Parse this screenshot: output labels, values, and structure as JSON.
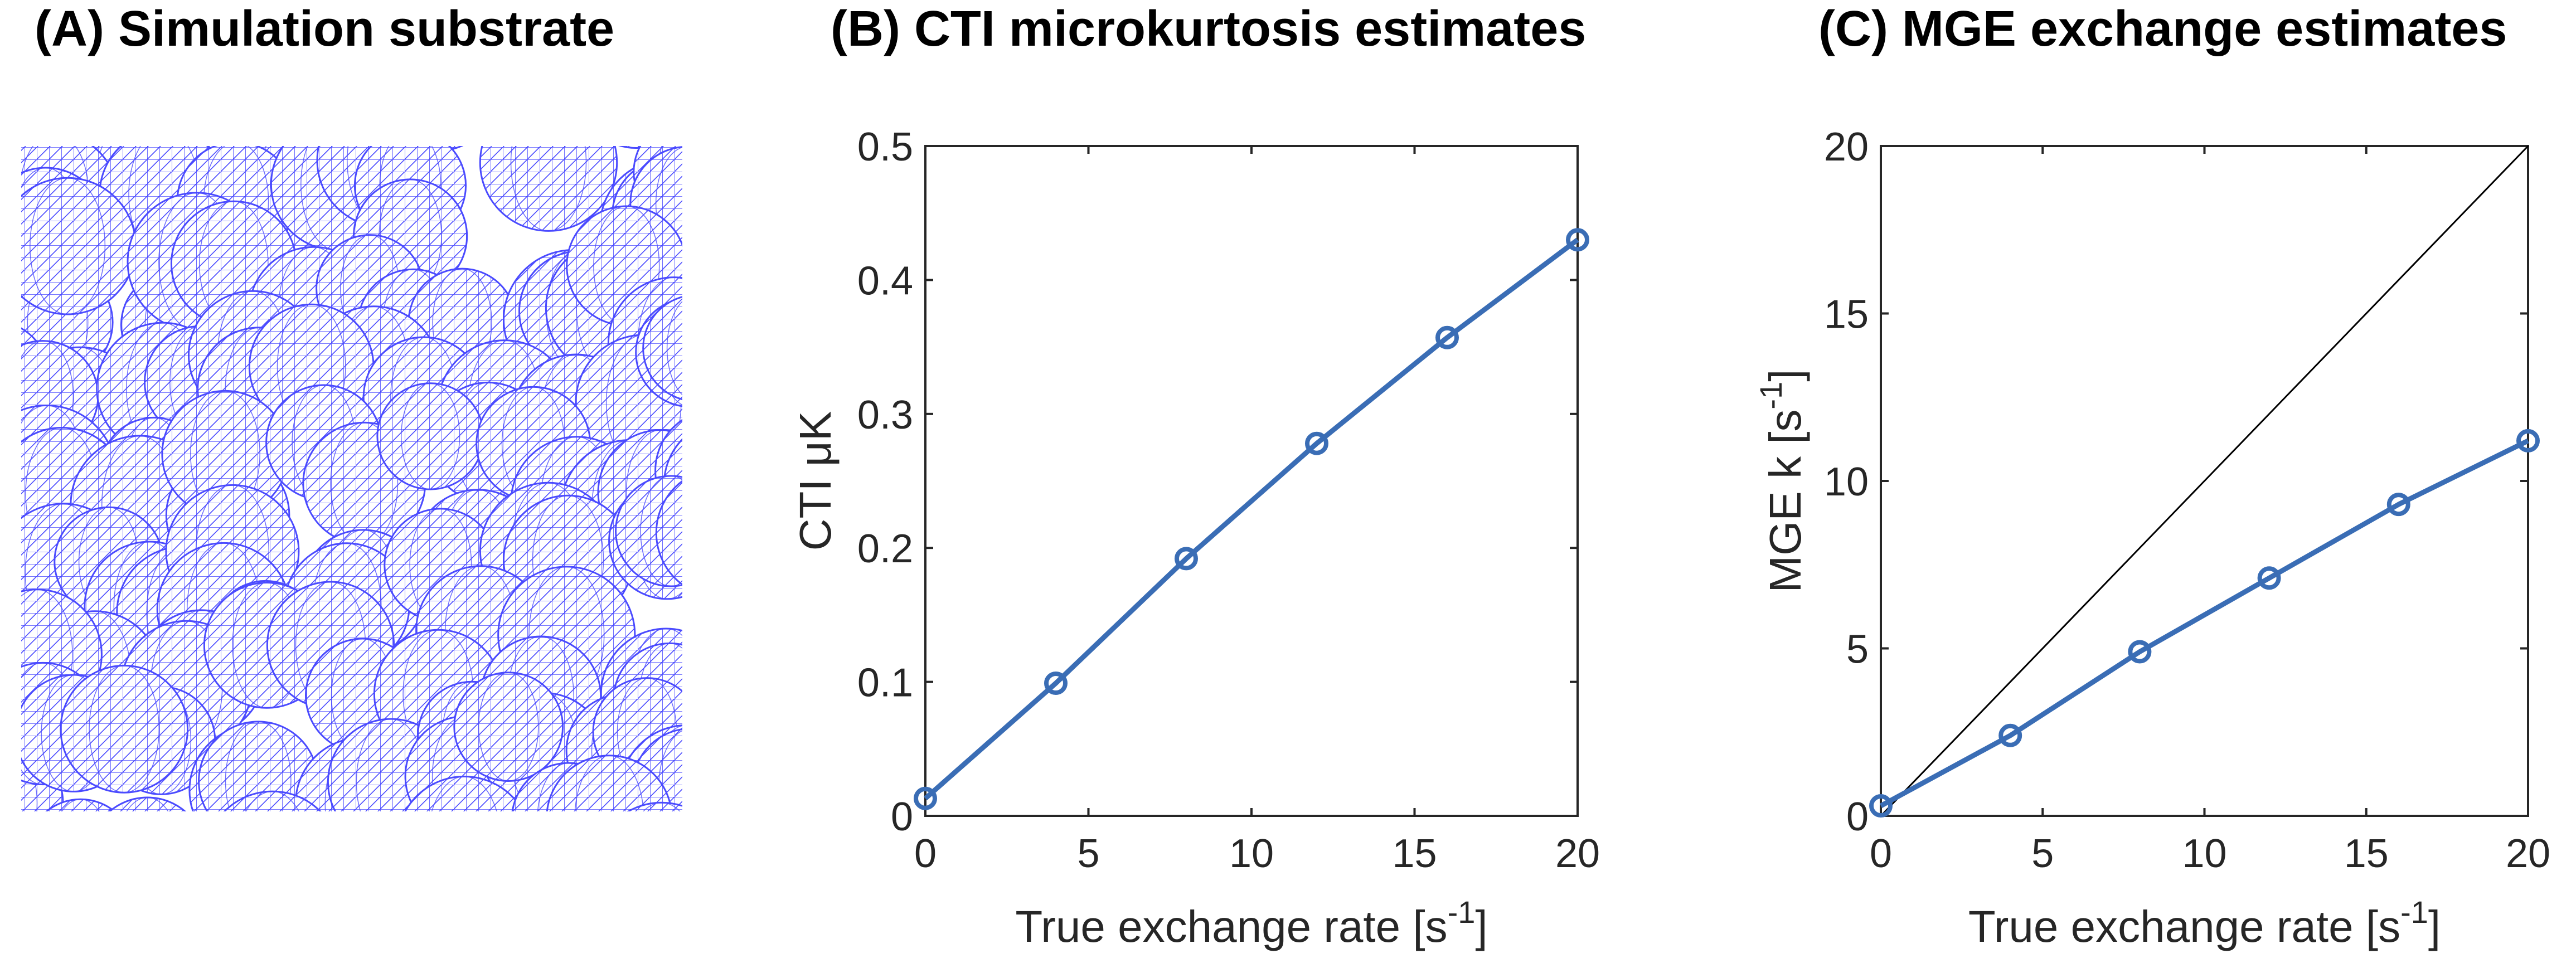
{
  "panels": {
    "a": {
      "title": "(A) Simulation substrate",
      "mesh_color": "#4a4aff"
    },
    "b": {
      "title": "(B) CTI  microkurtosis estimates"
    },
    "c": {
      "title": "(C) MGE exchange estimates"
    }
  },
  "chart_data": [
    {
      "type": "line",
      "panel": "B",
      "title": "(B) CTI  microkurtosis estimates",
      "xlabel": "True exchange rate [s",
      "xlabel_sup": "-1",
      "xlabel_end": "]",
      "ylabel": "CTI μK",
      "xlim": [
        0,
        20
      ],
      "ylim": [
        0,
        0.5
      ],
      "xticks": [
        0,
        5,
        10,
        15,
        20
      ],
      "yticks": [
        0,
        0.1,
        0.2,
        0.3,
        0.4,
        0.5
      ],
      "ytick_labels": [
        "0",
        "0.1",
        "0.2",
        "0.3",
        "0.4",
        "0.5"
      ],
      "series": [
        {
          "x": [
            0,
            4,
            8,
            12,
            16,
            20
          ],
          "values": [
            0.013,
            0.099,
            0.192,
            0.278,
            0.357,
            0.43
          ],
          "color": "#3a6db5",
          "marker": "circle"
        }
      ]
    },
    {
      "type": "line",
      "panel": "C",
      "title": "(C) MGE exchange estimates",
      "xlabel": "True exchange rate [s",
      "xlabel_sup": "-1",
      "xlabel_end": "]",
      "ylabel": "MGE k [s",
      "ylabel_sup": "-1",
      "ylabel_end": "]",
      "xlim": [
        0,
        20
      ],
      "ylim": [
        0,
        20
      ],
      "xticks": [
        0,
        5,
        10,
        15,
        20
      ],
      "yticks": [
        0,
        5,
        10,
        15,
        20
      ],
      "ytick_labels": [
        "0",
        "5",
        "10",
        "15",
        "20"
      ],
      "reference_line": {
        "x": [
          0,
          20
        ],
        "y": [
          0,
          20
        ],
        "color": "#000000"
      },
      "series": [
        {
          "x": [
            0,
            4,
            8,
            12,
            16,
            20
          ],
          "values": [
            0.3,
            2.4,
            4.9,
            7.1,
            9.3,
            11.2
          ],
          "color": "#3a6db5",
          "marker": "circle"
        }
      ]
    }
  ]
}
